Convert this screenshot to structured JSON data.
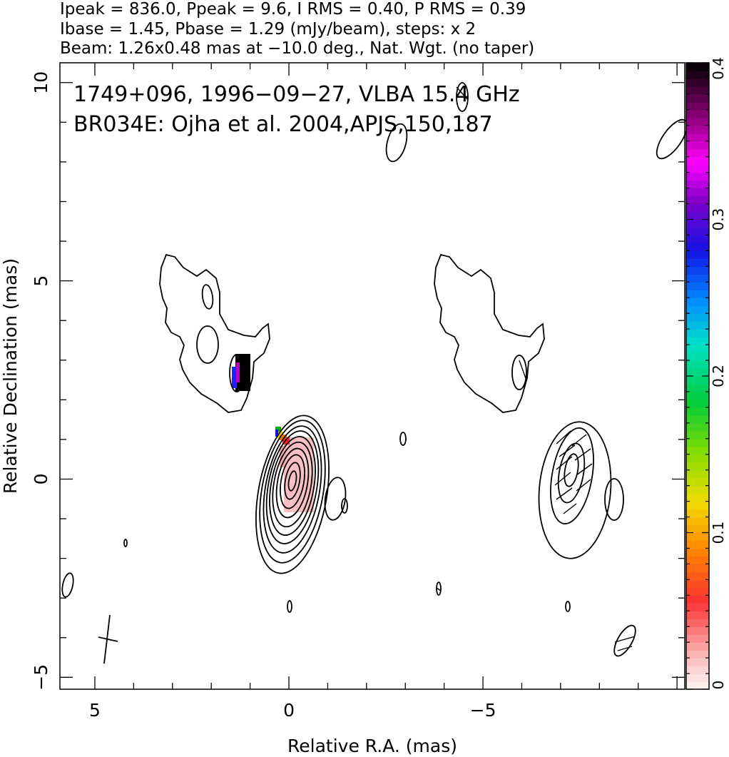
{
  "chart_data": {
    "type": "contour",
    "header_lines": [
      "Ipeak = 836.0, Ppeak = 9.6, I RMS = 0.40, P RMS = 0.39",
      "Ibase = 1.45, Pbase = 1.29 (mJy/beam), steps: x 2",
      "Beam: 1.26x0.48 mas at −10.0 deg., Nat. Wgt. (no taper)"
    ],
    "annotations": [
      "1749+096, 1996−09−27, VLBA 15.4 GHz",
      "BR034E: Ojha et al. 2004,APJS,150,187"
    ],
    "xlabel": "Relative R.A. (mas)",
    "ylabel": "Relative Declination (mas)",
    "xlim": [
      5.9,
      -10.2
    ],
    "ylim": [
      -5.3,
      10.5
    ],
    "x_ticks": [
      {
        "value": 5,
        "label": "5"
      },
      {
        "value": 0,
        "label": "0"
      },
      {
        "value": -5,
        "label": "−5"
      }
    ],
    "y_ticks": [
      {
        "value": -5,
        "label": "−5"
      },
      {
        "value": 0,
        "label": "0"
      },
      {
        "value": 5,
        "label": "5"
      },
      {
        "value": 10,
        "label": "10"
      }
    ],
    "colorbar": {
      "min": 0,
      "max": 0.4,
      "ticks": [
        {
          "value": 0,
          "label": "0"
        },
        {
          "value": 0.1,
          "label": "0.1"
        },
        {
          "value": 0.2,
          "label": "0.2"
        },
        {
          "value": 0.3,
          "label": "0.3"
        },
        {
          "value": 0.4,
          "label": "0.4"
        }
      ]
    },
    "beam": {
      "major_mas": 1.26,
      "minor_mas": 0.48,
      "pa_deg": -10.0
    },
    "core": {
      "x": 0,
      "y": 0
    },
    "left_panel_offset_mas": 0,
    "right_panel_offset_mas": -7
  }
}
